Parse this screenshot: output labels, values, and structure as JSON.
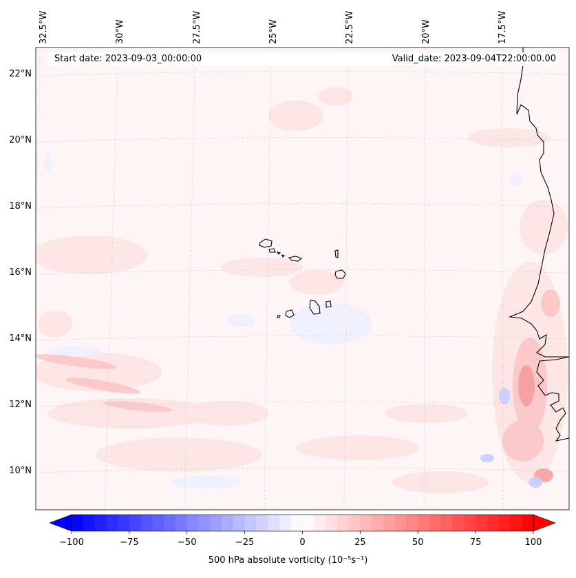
{
  "header": {
    "start_date": "Start date: 2023-09-03_00:00:00",
    "valid_date": "Valid_date: 2023-09-04T22:00:00.00"
  },
  "map": {
    "lon_labels": [
      "32.5°W",
      "30°W",
      "27.5°W",
      "25°W",
      "22.5°W",
      "20°W",
      "17.5°W"
    ],
    "lat_labels": [
      "22°N",
      "20°N",
      "18°N",
      "16°N",
      "14°N",
      "12°N",
      "10°N"
    ],
    "field_colors": {
      "background": "#fef6f6",
      "weak_positive": "#fde4e4",
      "moderate_positive": "#fbc4c4",
      "strong_positive": "#f79a9a",
      "weak_negative": "#eef0ff",
      "moderate_negative": "#c8ccff"
    }
  },
  "colorbar": {
    "label": "500 hPa absolute vorticity (10⁻⁵s⁻¹)",
    "ticks": [
      "−100",
      "−75",
      "−50",
      "−25",
      "0",
      "25",
      "50",
      "75",
      "100"
    ],
    "min": -100,
    "max": 100,
    "colormap": "bwr",
    "extend": "both"
  }
}
